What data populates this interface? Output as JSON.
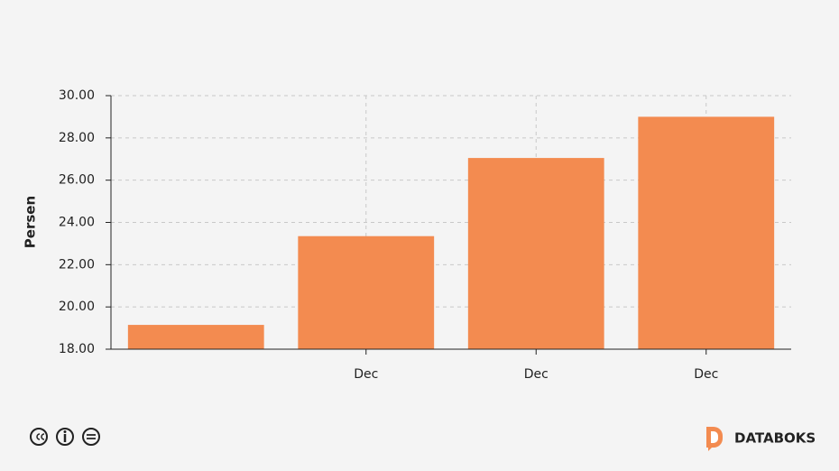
{
  "chart_data": {
    "type": "bar",
    "y_label": "Persen",
    "categories": [
      null,
      "Dec",
      "Dec",
      "Dec"
    ],
    "values": [
      19.15,
      23.35,
      27.05,
      29.0
    ],
    "color": "#f38b50",
    "ylim": [
      18,
      30
    ],
    "yticks": [
      {
        "value": 18,
        "label": "18.00"
      },
      {
        "value": 20,
        "label": "20.00"
      },
      {
        "value": 22,
        "label": "22.00"
      },
      {
        "value": 24,
        "label": "24.00"
      },
      {
        "value": 26,
        "label": "26.00"
      },
      {
        "value": 28,
        "label": "28.00"
      },
      {
        "value": 30,
        "label": "30.00"
      }
    ],
    "grid": true
  },
  "footer": {
    "brand": "DATABOKS"
  }
}
